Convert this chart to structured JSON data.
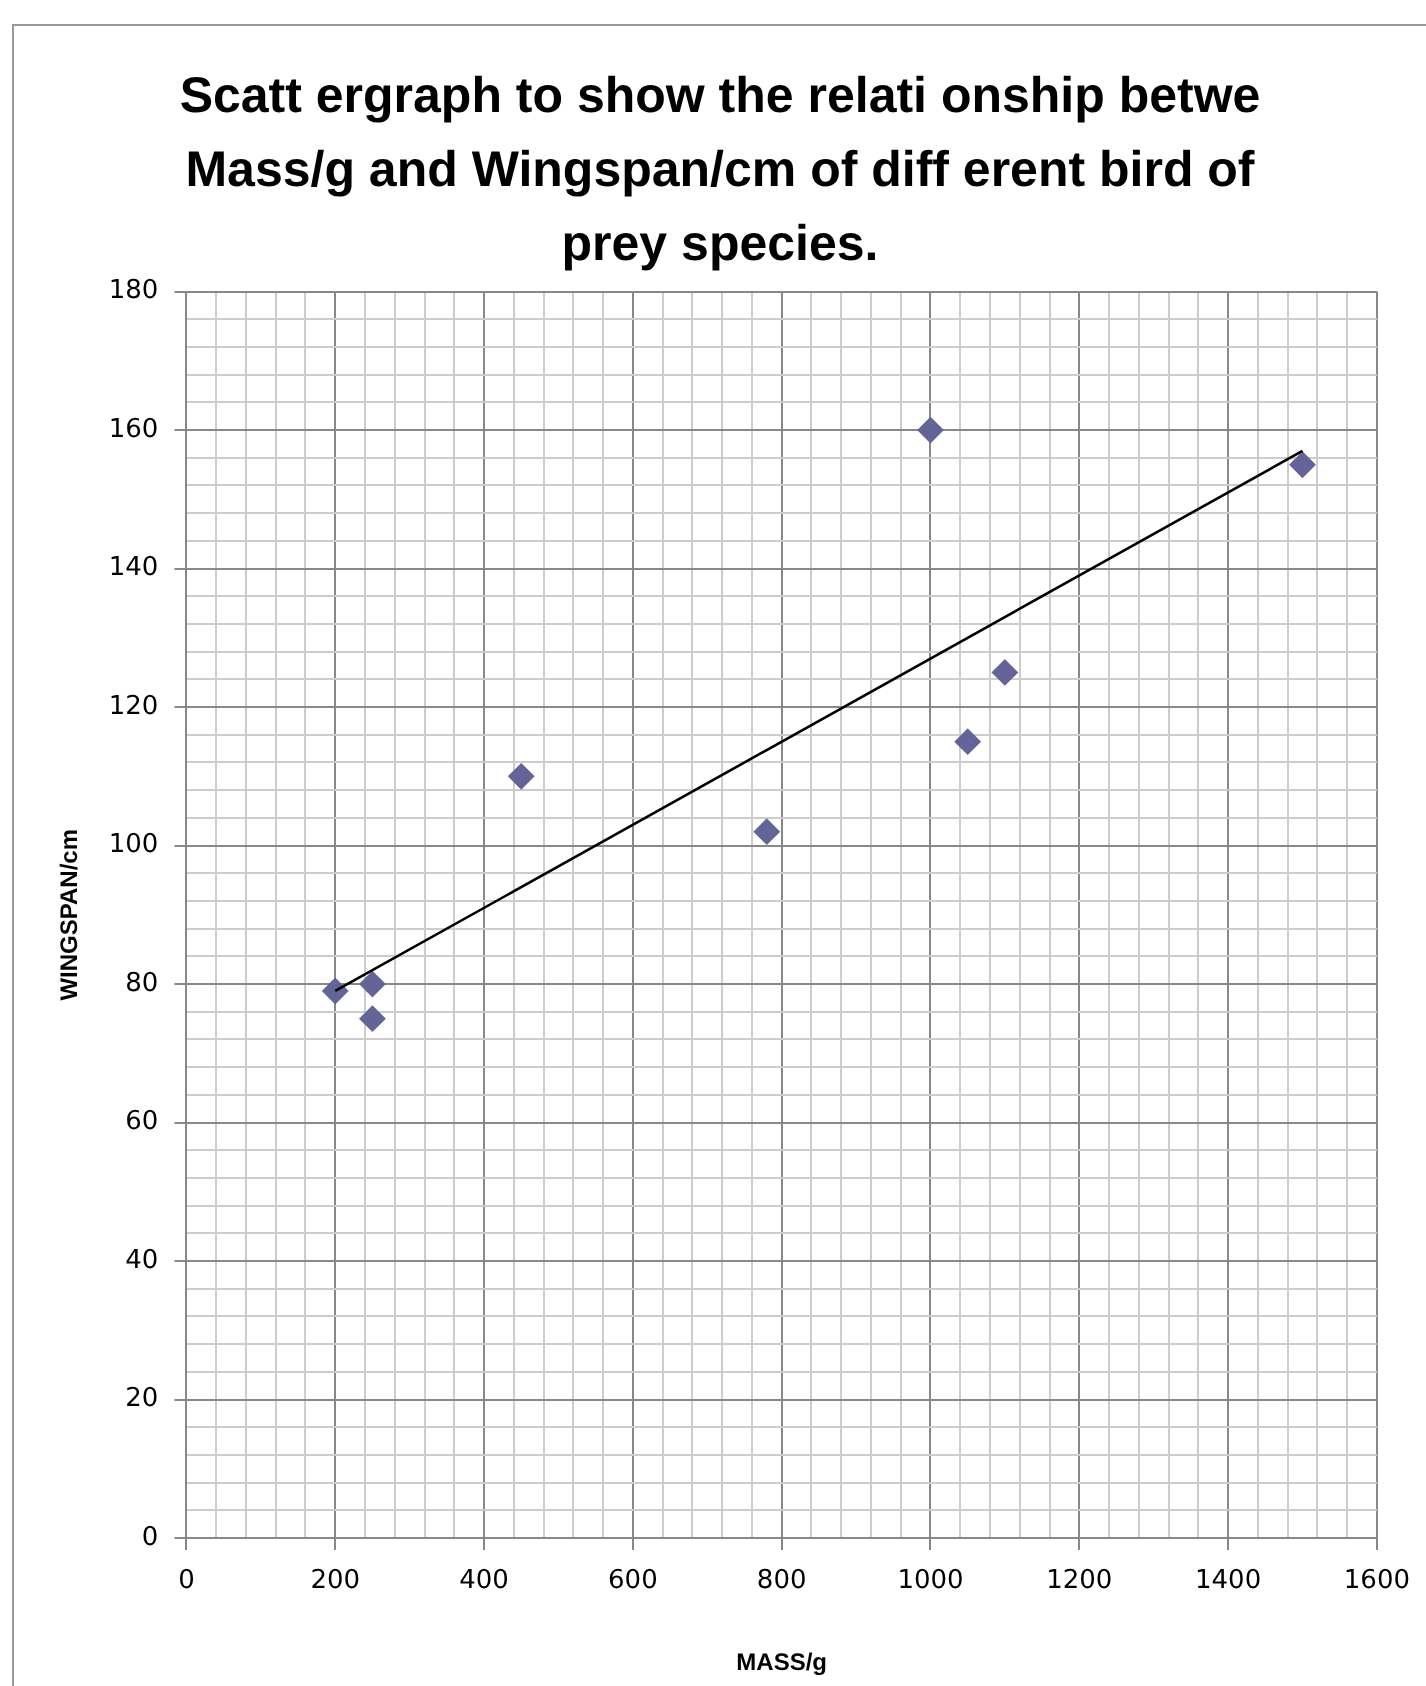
{
  "chart_data": {
    "type": "scatter",
    "title": "Scatt ergraph to show the relati onship betwe Mass/g and Wingspan/cm of diff erent bird of prey species.",
    "xlabel": "MASS/g",
    "ylabel": "WINGSPAN/cm",
    "xlim": [
      0,
      1600
    ],
    "ylim": [
      0,
      180
    ],
    "xticks": [
      0,
      {
        "value": 40,
        "label": null
      },
      {
        "value": 80,
        "label": null
      },
      {
        "value": 120,
        "label": null
      },
      {
        "value": 160,
        "label": null
      },
      200,
      {
        "value": 240,
        "label": null
      },
      {
        "value": 280,
        "label": null
      },
      {
        "value": 320,
        "label": null
      },
      {
        "value": 360,
        "label": null
      },
      400,
      {
        "value": 440,
        "label": null
      },
      {
        "value": 480,
        "label": null
      },
      {
        "value": 520,
        "label": null
      },
      {
        "value": 560,
        "label": null
      },
      600,
      {
        "value": 640,
        "label": null
      },
      {
        "value": 680,
        "label": null
      },
      {
        "value": 720,
        "label": null
      },
      {
        "value": 760,
        "label": null
      },
      800,
      {
        "value": 840,
        "label": null
      },
      {
        "value": 880,
        "label": null
      },
      {
        "value": 920,
        "label": null
      },
      {
        "value": 960,
        "label": null
      },
      1000,
      {
        "value": 1040,
        "label": null
      },
      {
        "value": 1080,
        "label": null
      },
      {
        "value": 1120,
        "label": null
      },
      {
        "value": 1160,
        "label": null
      },
      1200,
      {
        "value": 1240,
        "label": null
      },
      {
        "value": 1280,
        "label": null
      },
      {
        "value": 1320,
        "label": null
      },
      {
        "value": 1360,
        "label": null
      },
      1400,
      {
        "value": 1440,
        "label": null
      },
      {
        "value": 1480,
        "label": null
      },
      {
        "value": 1520,
        "label": null
      },
      {
        "value": 1560,
        "label": null
      },
      1600
    ],
    "yticks": [
      0,
      {
        "value": 4,
        "label": null
      },
      {
        "value": 8,
        "label": null
      },
      {
        "value": 12,
        "label": null
      },
      {
        "value": 16,
        "label": null
      },
      20,
      {
        "value": 24,
        "label": null
      },
      {
        "value": 28,
        "label": null
      },
      {
        "value": 32,
        "label": null
      },
      {
        "value": 36,
        "label": null
      },
      40,
      {
        "value": 44,
        "label": null
      },
      {
        "value": 48,
        "label": null
      },
      {
        "value": 52,
        "label": null
      },
      {
        "value": 56,
        "label": null
      },
      60,
      {
        "value": 64,
        "label": null
      },
      {
        "value": 68,
        "label": null
      },
      {
        "value": 72,
        "label": null
      },
      {
        "value": 76,
        "label": null
      },
      80,
      {
        "value": 84,
        "label": null
      },
      {
        "value": 88,
        "label": null
      },
      {
        "value": 92,
        "label": null
      },
      {
        "value": 96,
        "label": null
      },
      100,
      {
        "value": 104,
        "label": null
      },
      {
        "value": 108,
        "label": null
      },
      {
        "value": 112,
        "label": null
      },
      {
        "value": 116,
        "label": null
      },
      120,
      {
        "value": 124,
        "label": null
      },
      {
        "value": 128,
        "label": null
      },
      {
        "value": 132,
        "label": null
      },
      {
        "value": 136,
        "label": null
      },
      140,
      {
        "value": 144,
        "label": null
      },
      {
        "value": 148,
        "label": null
      },
      {
        "value": 152,
        "label": null
      },
      {
        "value": 156,
        "label": null
      },
      160,
      {
        "value": 164,
        "label": null
      },
      {
        "value": 168,
        "label": null
      },
      {
        "value": 172,
        "label": null
      },
      {
        "value": 176,
        "label": null
      },
      180
    ],
    "grid": true,
    "series": [
      {
        "marker": "diamond",
        "color": "#646499",
        "x": [
          200,
          250,
          250,
          450,
          780,
          1000,
          1050,
          1100,
          1500
        ],
        "values": [
          79,
          80,
          75,
          110,
          102,
          160,
          115,
          125,
          155
        ]
      },
      {
        "type": "line",
        "marker": "none",
        "color": "#000000",
        "x": [
          200,
          1500
        ],
        "values": [
          79,
          157
        ]
      }
    ]
  }
}
